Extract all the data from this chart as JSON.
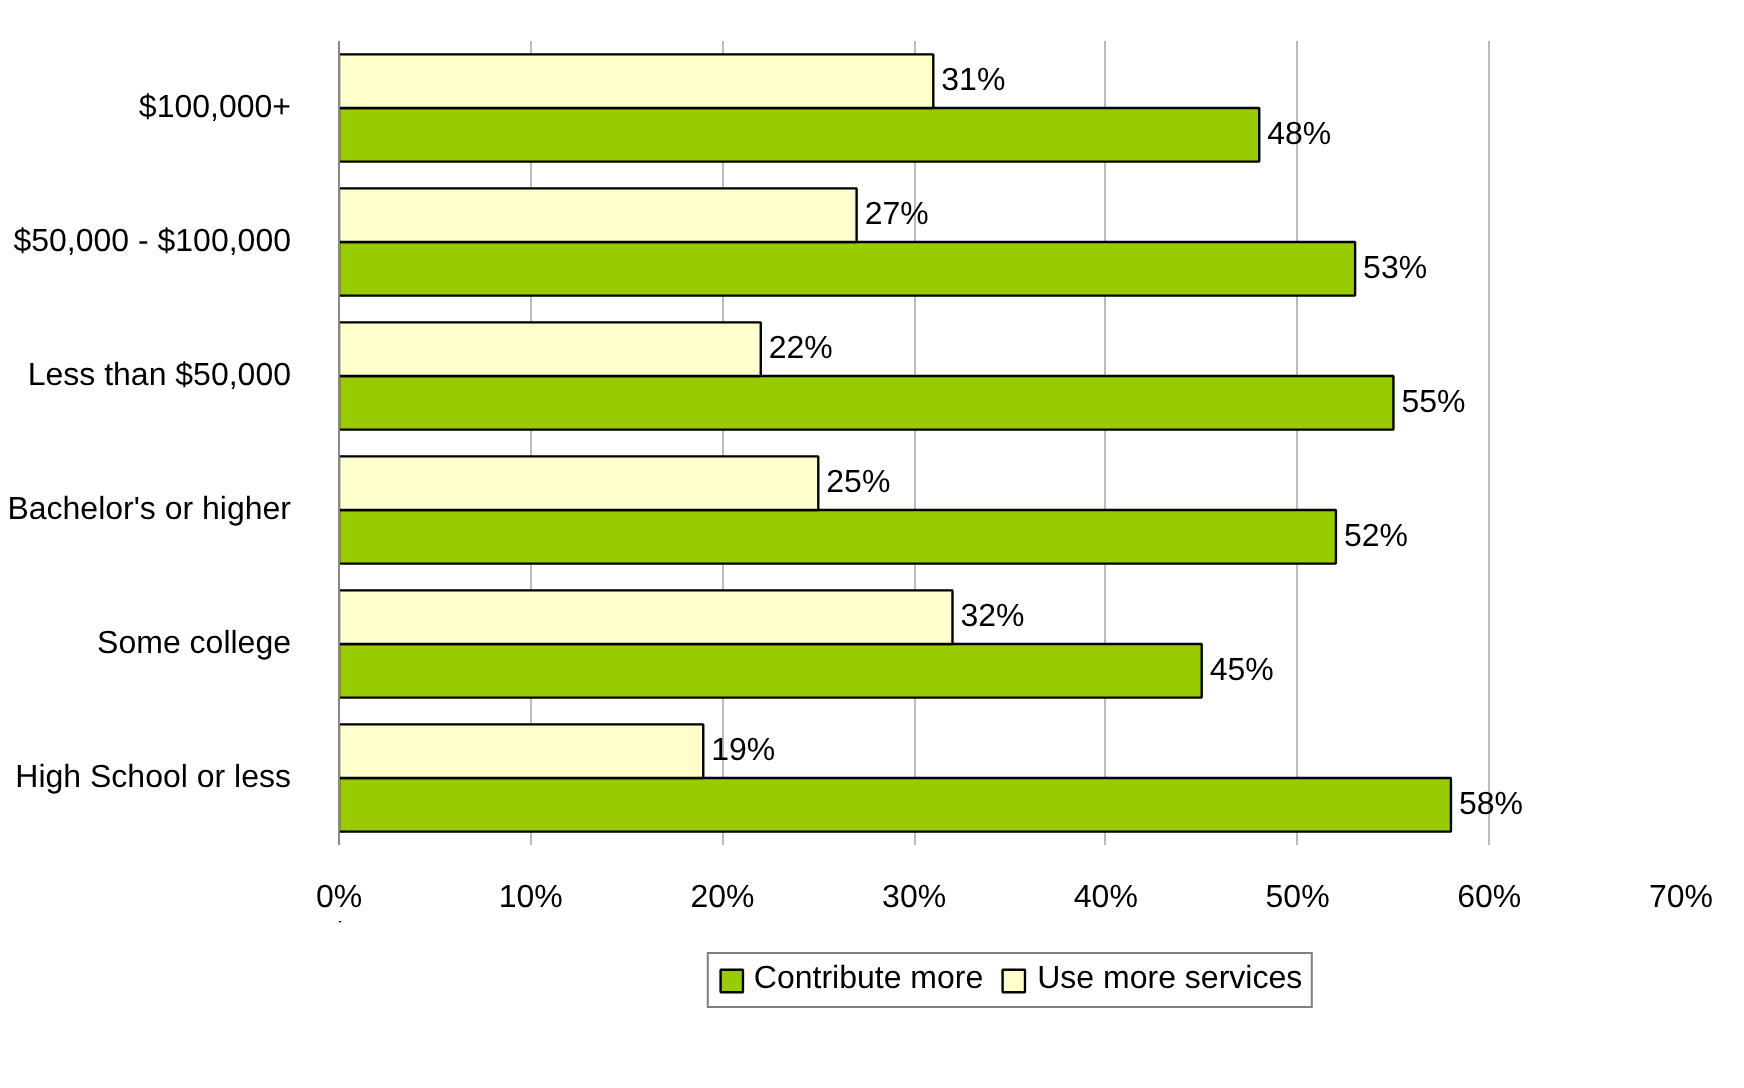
{
  "chart_data": {
    "type": "bar",
    "orientation": "horizontal",
    "categories": [
      "$100,000+",
      "$50,000 - $100,000",
      "Less than $50,000",
      "Bachelor's or higher",
      "Some college",
      "High School or less"
    ],
    "series": [
      {
        "name": "Contribute more",
        "color": "#99cc00",
        "values": [
          48,
          53,
          55,
          52,
          45,
          58
        ],
        "value_labels": [
          "48%",
          "53%",
          "55%",
          "52%",
          "45%",
          "58%"
        ]
      },
      {
        "name": "Use more services",
        "color": "#ffffcc",
        "values": [
          31,
          27,
          22,
          25,
          32,
          19
        ],
        "value_labels": [
          "31%",
          "27%",
          "22%",
          "25%",
          "32%",
          "19%"
        ]
      }
    ],
    "xlim": [
      0,
      70
    ],
    "xticks": [
      {
        "value": 0,
        "label": "0%"
      },
      {
        "value": 10,
        "label": "10%"
      },
      {
        "value": 20,
        "label": "20%"
      },
      {
        "value": 30,
        "label": "30%"
      },
      {
        "value": 40,
        "label": "40%"
      },
      {
        "value": 50,
        "label": "50%"
      },
      {
        "value": 60,
        "label": "60%"
      },
      {
        "value": 70,
        "label": "70%"
      }
    ],
    "grid": "x",
    "legend": "bottom"
  }
}
